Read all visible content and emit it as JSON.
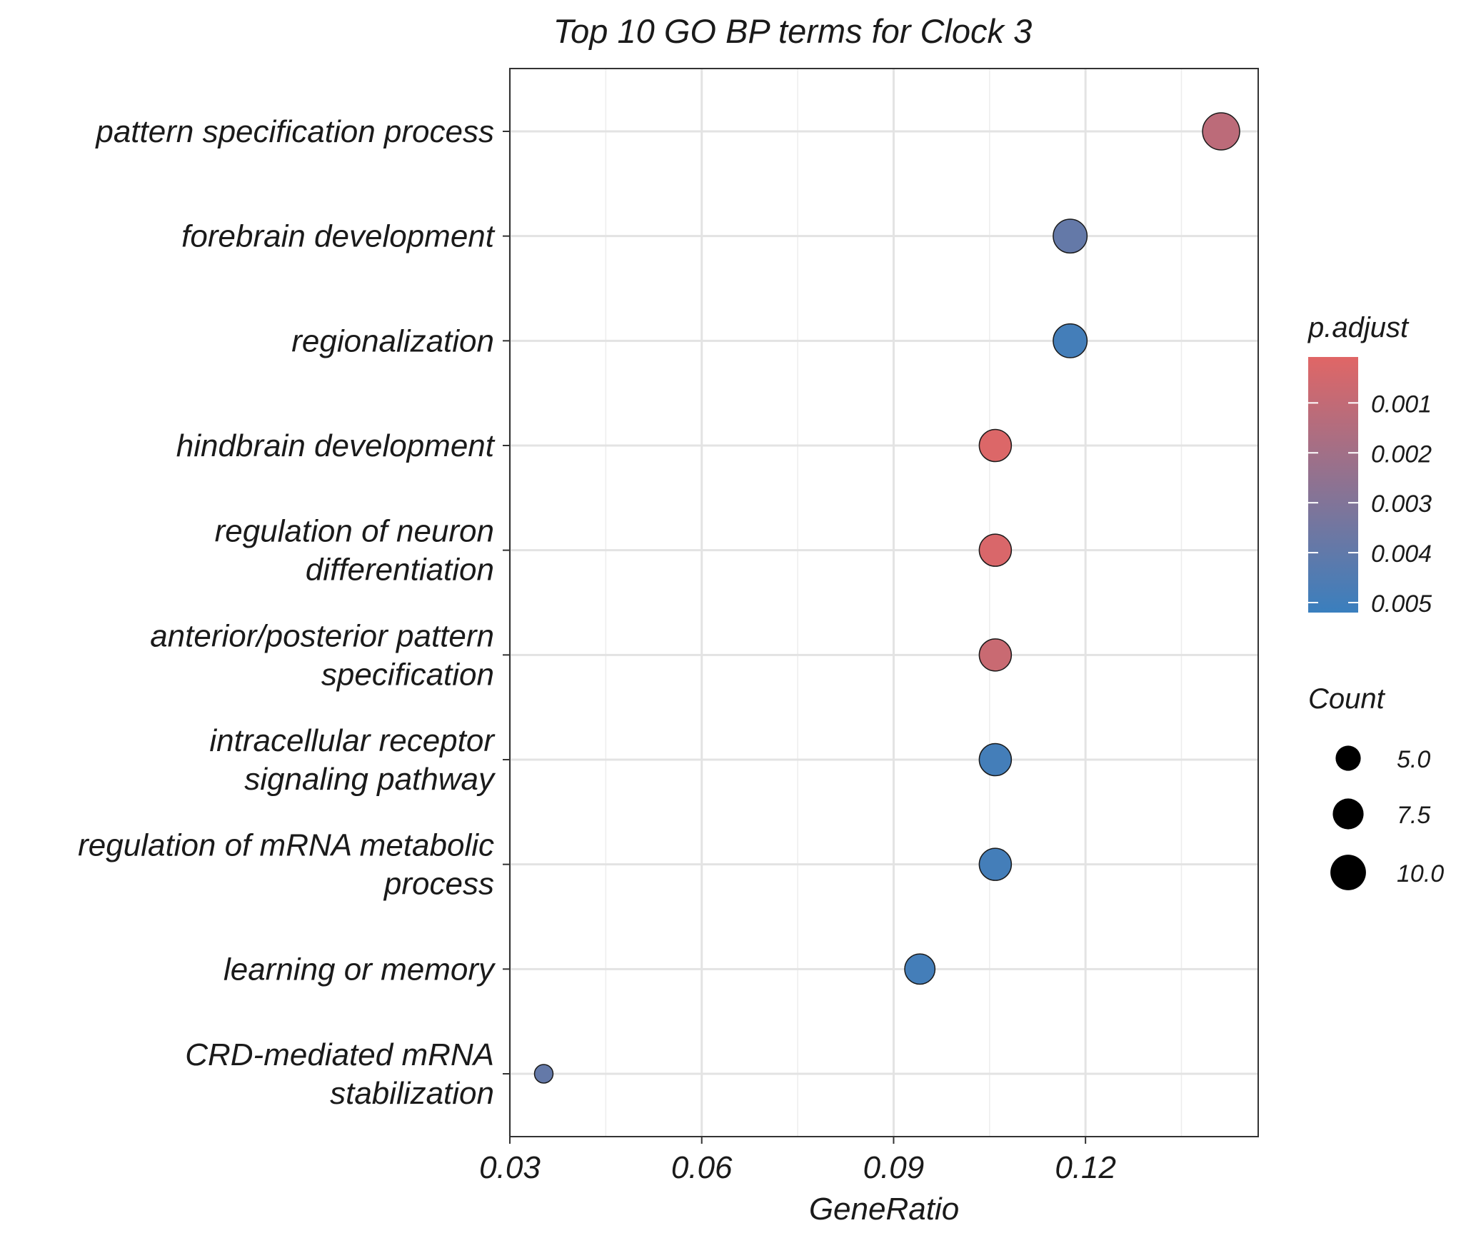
{
  "chart_data": {
    "type": "scatter",
    "title": "Top 10 GO BP terms for Clock 3",
    "xlabel": "GeneRatio",
    "ylabel": "",
    "xlim": [
      0.03,
      0.147
    ],
    "x_ticks": [
      "0.03",
      "0.06",
      "0.09",
      "0.12"
    ],
    "grid": true,
    "legend_position": "right",
    "color_legend": {
      "title": "p.adjust",
      "labels": [
        "0.001",
        "0.002",
        "0.003",
        "0.004",
        "0.005"
      ],
      "low_color": "#E06666",
      "high_color": "#3A7FBE"
    },
    "size_legend": {
      "title": "Count",
      "labels": [
        "5.0",
        "7.5",
        "10.0"
      ],
      "values": [
        5,
        7.5,
        10
      ]
    },
    "points": [
      {
        "term": [
          "pattern specification process"
        ],
        "x": 0.1412,
        "count": 12,
        "p_adjust": 0.0012
      },
      {
        "term": [
          "forebrain development"
        ],
        "x": 0.1176,
        "count": 10,
        "p_adjust": 0.0039
      },
      {
        "term": [
          "regionalization"
        ],
        "x": 0.1176,
        "count": 10,
        "p_adjust": 0.0049
      },
      {
        "term": [
          "hindbrain development"
        ],
        "x": 0.1059,
        "count": 9,
        "p_adjust": 0.0002
      },
      {
        "term": [
          "regulation of neuron",
          "differentiation"
        ],
        "x": 0.1059,
        "count": 9,
        "p_adjust": 0.0003
      },
      {
        "term": [
          "anterior/posterior pattern",
          "specification"
        ],
        "x": 0.1059,
        "count": 9,
        "p_adjust": 0.0008
      },
      {
        "term": [
          "intracellular receptor",
          "signaling pathway"
        ],
        "x": 0.1059,
        "count": 9,
        "p_adjust": 0.0049
      },
      {
        "term": [
          "regulation of mRNA metabolic",
          "process"
        ],
        "x": 0.1059,
        "count": 9,
        "p_adjust": 0.0049
      },
      {
        "term": [
          "learning or memory"
        ],
        "x": 0.0941,
        "count": 8,
        "p_adjust": 0.0049
      },
      {
        "term": [
          "CRD-mediated mRNA",
          "stabilization"
        ],
        "x": 0.0353,
        "count": 3,
        "p_adjust": 0.0039
      }
    ]
  }
}
